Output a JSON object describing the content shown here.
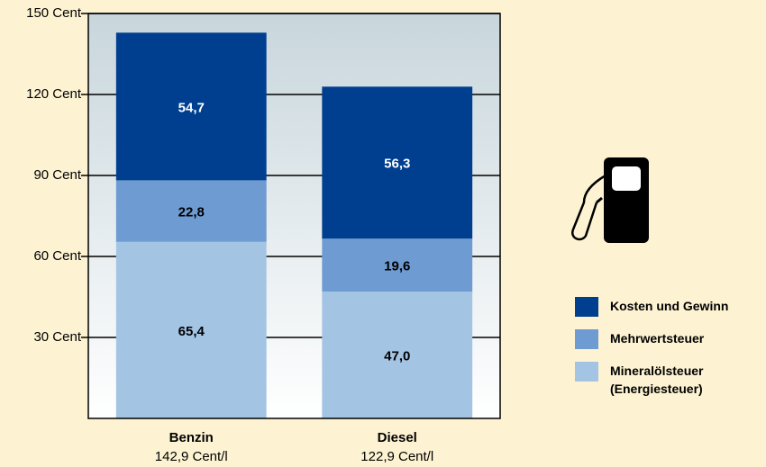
{
  "chart_data": {
    "type": "stacked-bar",
    "categories": [
      "Benzin",
      "Diesel"
    ],
    "category_sublabels": [
      "142,9 Cent/l",
      "122,9 Cent/l"
    ],
    "series": [
      {
        "name": "Mineralölsteuer (Energiesteuer)",
        "color": "#a4c4e4",
        "values": [
          65.4,
          47.0
        ],
        "value_labels": [
          "65,4",
          "47,0"
        ]
      },
      {
        "name": "Mehrwertsteuer",
        "color": "#6d9bd2",
        "values": [
          22.8,
          19.6
        ],
        "value_labels": [
          "22,8",
          "19,6"
        ]
      },
      {
        "name": "Kosten und Gewinn",
        "color": "#003f90",
        "values": [
          54.7,
          56.3
        ],
        "value_labels": [
          "54,7",
          "56,3"
        ]
      }
    ],
    "ylim": [
      0,
      150
    ],
    "yticks": [
      {
        "value": 30,
        "label": "30 Cent"
      },
      {
        "value": 60,
        "label": "60 Cent"
      },
      {
        "value": 90,
        "label": "90 Cent"
      },
      {
        "value": 120,
        "label": "120 Cent"
      },
      {
        "value": 150,
        "label": "150 Cent"
      }
    ],
    "grid": true
  }
}
